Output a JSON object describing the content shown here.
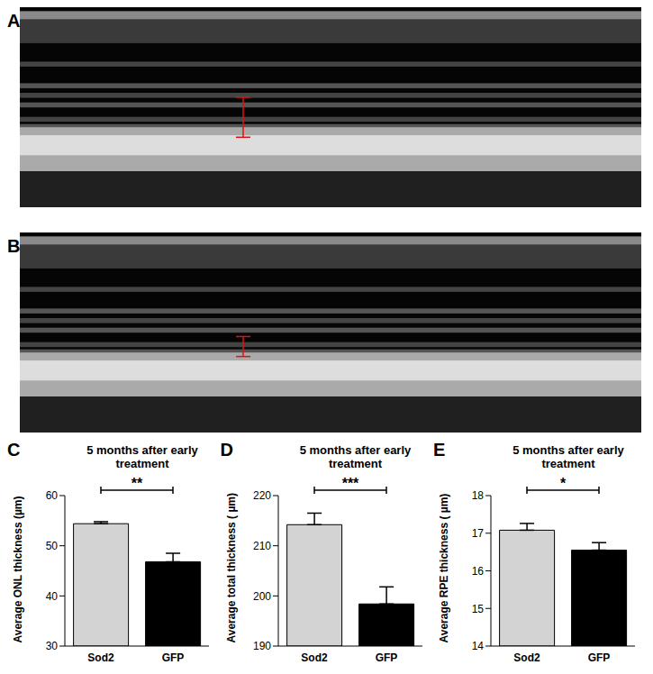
{
  "images": [
    {
      "label": "A"
    },
    {
      "label": "B"
    }
  ],
  "chart_data": [
    {
      "label": "C",
      "type": "bar",
      "title": "5 months after early treatment",
      "y_label": "Average ONL thickness (µm)",
      "categories": [
        "Sod2",
        "GFP"
      ],
      "values": [
        54.4,
        46.8
      ],
      "errors": [
        0.4,
        1.7
      ],
      "colors": [
        "#d3d3d3",
        "#000000"
      ],
      "ylim": [
        30,
        60
      ],
      "yticks": [
        30,
        40,
        50,
        60
      ],
      "annotation": "**",
      "grid": false
    },
    {
      "label": "D",
      "type": "bar",
      "title": "5 months after early treatment",
      "y_label": "Average total thickness ( µm)",
      "categories": [
        "Sod2",
        "GFP"
      ],
      "values": [
        214.2,
        198.4
      ],
      "errors": [
        2.3,
        3.4
      ],
      "colors": [
        "#d3d3d3",
        "#000000"
      ],
      "ylim": [
        190,
        220
      ],
      "yticks": [
        190,
        200,
        210,
        220
      ],
      "annotation": "***",
      "grid": false
    },
    {
      "label": "E",
      "type": "bar",
      "title": "5 months after early treatment",
      "y_label": "Average RPE thickness ( µm)",
      "categories": [
        "Sod2",
        "GFP"
      ],
      "values": [
        17.08,
        16.55
      ],
      "errors": [
        0.18,
        0.2
      ],
      "colors": [
        "#d3d3d3",
        "#000000"
      ],
      "ylim": [
        14,
        18
      ],
      "yticks": [
        14,
        15,
        16,
        17,
        18
      ],
      "annotation": "*",
      "grid": false
    }
  ]
}
